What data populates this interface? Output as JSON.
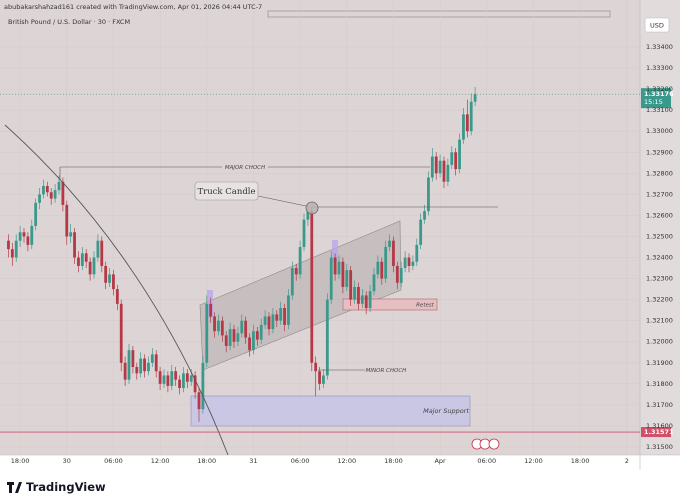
{
  "header": {
    "attribution": "abubakarshahzad161 created with TradingView.com, Apr 01, 2026 04:44 UTC-7",
    "symbol": "British Pound / U.S. Dollar · 30 · FXCM",
    "currency": "USD"
  },
  "chart_data": {
    "type": "candlestick",
    "ohlc": [
      [
        1.3248,
        1.3251,
        1.324,
        1.3244
      ],
      [
        1.3244,
        1.3247,
        1.3236,
        1.324
      ],
      [
        1.324,
        1.3251,
        1.3238,
        1.3248
      ],
      [
        1.3248,
        1.3255,
        1.3245,
        1.3252
      ],
      [
        1.3252,
        1.3254,
        1.3247,
        1.325
      ],
      [
        1.325,
        1.3252,
        1.3243,
        1.3246
      ],
      [
        1.3246,
        1.3258,
        1.3244,
        1.3255
      ],
      [
        1.3255,
        1.3268,
        1.3253,
        1.3266
      ],
      [
        1.3266,
        1.3273,
        1.3263,
        1.327
      ],
      [
        1.327,
        1.3277,
        1.3268,
        1.3274
      ],
      [
        1.3274,
        1.3276,
        1.3269,
        1.3271
      ],
      [
        1.3271,
        1.3273,
        1.3265,
        1.3268
      ],
      [
        1.3268,
        1.3275,
        1.3266,
        1.3272
      ],
      [
        1.3272,
        1.3279,
        1.327,
        1.3276
      ],
      [
        1.3276,
        1.3278,
        1.3262,
        1.3265
      ],
      [
        1.3265,
        1.3267,
        1.3246,
        1.325
      ],
      [
        1.325,
        1.3256,
        1.3247,
        1.3252
      ],
      [
        1.3252,
        1.3254,
        1.3237,
        1.324
      ],
      [
        1.324,
        1.3243,
        1.3233,
        1.3236
      ],
      [
        1.3236,
        1.3245,
        1.3234,
        1.3242
      ],
      [
        1.3242,
        1.3244,
        1.3235,
        1.3238
      ],
      [
        1.3238,
        1.324,
        1.3229,
        1.3232
      ],
      [
        1.3232,
        1.3243,
        1.323,
        1.324
      ],
      [
        1.324,
        1.3251,
        1.3238,
        1.3248
      ],
      [
        1.3248,
        1.325,
        1.3233,
        1.3236
      ],
      [
        1.3236,
        1.3238,
        1.3225,
        1.3228
      ],
      [
        1.3228,
        1.3235,
        1.3226,
        1.3232
      ],
      [
        1.3232,
        1.3234,
        1.3222,
        1.3225
      ],
      [
        1.3225,
        1.3227,
        1.3215,
        1.3218
      ],
      [
        1.3218,
        1.322,
        1.3186,
        1.319
      ],
      [
        1.319,
        1.3193,
        1.3179,
        1.3182
      ],
      [
        1.3182,
        1.3199,
        1.318,
        1.3196
      ],
      [
        1.3196,
        1.3198,
        1.3185,
        1.3188
      ],
      [
        1.3188,
        1.319,
        1.3182,
        1.3185
      ],
      [
        1.3185,
        1.3195,
        1.3183,
        1.3192
      ],
      [
        1.3192,
        1.3194,
        1.3183,
        1.3186
      ],
      [
        1.3186,
        1.3193,
        1.3184,
        1.319
      ],
      [
        1.319,
        1.3197,
        1.3188,
        1.3194
      ],
      [
        1.3194,
        1.3196,
        1.3183,
        1.3186
      ],
      [
        1.3186,
        1.3188,
        1.3177,
        1.318
      ],
      [
        1.318,
        1.3187,
        1.3178,
        1.3184
      ],
      [
        1.3184,
        1.3186,
        1.3176,
        1.3179
      ],
      [
        1.3179,
        1.3189,
        1.3177,
        1.3186
      ],
      [
        1.3186,
        1.3188,
        1.3179,
        1.3182
      ],
      [
        1.3182,
        1.3184,
        1.3175,
        1.3178
      ],
      [
        1.3178,
        1.3188,
        1.3176,
        1.3185
      ],
      [
        1.3185,
        1.3187,
        1.3178,
        1.3181
      ],
      [
        1.3181,
        1.3187,
        1.3179,
        1.3184
      ],
      [
        1.3184,
        1.3186,
        1.3173,
        1.3176
      ],
      [
        1.3176,
        1.3178,
        1.3162,
        1.3168
      ],
      [
        1.3168,
        1.3193,
        1.3166,
        1.319
      ],
      [
        1.319,
        1.3222,
        1.3188,
        1.3218
      ],
      [
        1.3218,
        1.3221,
        1.3209,
        1.3212
      ],
      [
        1.3212,
        1.3214,
        1.3202,
        1.3205
      ],
      [
        1.3205,
        1.3213,
        1.3203,
        1.321
      ],
      [
        1.321,
        1.3212,
        1.32,
        1.3203
      ],
      [
        1.3203,
        1.3205,
        1.3195,
        1.3198
      ],
      [
        1.3198,
        1.3209,
        1.3196,
        1.3206
      ],
      [
        1.3206,
        1.3208,
        1.3197,
        1.32
      ],
      [
        1.32,
        1.3207,
        1.3198,
        1.3204
      ],
      [
        1.3204,
        1.3213,
        1.3202,
        1.321
      ],
      [
        1.321,
        1.3212,
        1.3199,
        1.3202
      ],
      [
        1.3202,
        1.3204,
        1.3193,
        1.3196
      ],
      [
        1.3196,
        1.3208,
        1.3194,
        1.3205
      ],
      [
        1.3205,
        1.3207,
        1.3198,
        1.3201
      ],
      [
        1.3201,
        1.3211,
        1.3199,
        1.3208
      ],
      [
        1.3208,
        1.3215,
        1.3206,
        1.3212
      ],
      [
        1.3212,
        1.3214,
        1.3203,
        1.3206
      ],
      [
        1.3206,
        1.3216,
        1.3204,
        1.3213
      ],
      [
        1.3213,
        1.3215,
        1.3207,
        1.321
      ],
      [
        1.321,
        1.3219,
        1.3208,
        1.3216
      ],
      [
        1.3216,
        1.3218,
        1.3205,
        1.3208
      ],
      [
        1.3208,
        1.3225,
        1.3206,
        1.3222
      ],
      [
        1.3222,
        1.3238,
        1.322,
        1.3235
      ],
      [
        1.3235,
        1.3237,
        1.3229,
        1.3232
      ],
      [
        1.3232,
        1.3248,
        1.323,
        1.3245
      ],
      [
        1.3245,
        1.3261,
        1.3243,
        1.3258
      ],
      [
        1.3258,
        1.3265,
        1.3255,
        1.3262
      ],
      [
        1.3262,
        1.3264,
        1.3186,
        1.319
      ],
      [
        1.319,
        1.3193,
        1.3174,
        1.3186
      ],
      [
        1.3186,
        1.3188,
        1.3177,
        1.318
      ],
      [
        1.318,
        1.3187,
        1.3178,
        1.3184
      ],
      [
        1.3184,
        1.3223,
        1.3182,
        1.322
      ],
      [
        1.322,
        1.3243,
        1.3218,
        1.324
      ],
      [
        1.324,
        1.3242,
        1.3229,
        1.3232
      ],
      [
        1.3232,
        1.3241,
        1.323,
        1.3238
      ],
      [
        1.3238,
        1.324,
        1.3223,
        1.3226
      ],
      [
        1.3226,
        1.3237,
        1.3224,
        1.3234
      ],
      [
        1.3234,
        1.3236,
        1.3217,
        1.322
      ],
      [
        1.322,
        1.3229,
        1.3218,
        1.3226
      ],
      [
        1.3226,
        1.3228,
        1.3215,
        1.3218
      ],
      [
        1.3218,
        1.3225,
        1.3216,
        1.3222
      ],
      [
        1.3222,
        1.3224,
        1.3213,
        1.3216
      ],
      [
        1.3216,
        1.3227,
        1.3214,
        1.3224
      ],
      [
        1.3224,
        1.3235,
        1.3222,
        1.3232
      ],
      [
        1.3232,
        1.3241,
        1.323,
        1.3238
      ],
      [
        1.3238,
        1.324,
        1.3227,
        1.323
      ],
      [
        1.323,
        1.3248,
        1.3228,
        1.3245
      ],
      [
        1.3245,
        1.3251,
        1.3243,
        1.3248
      ],
      [
        1.3248,
        1.325,
        1.3233,
        1.3236
      ],
      [
        1.3236,
        1.3238,
        1.3225,
        1.3228
      ],
      [
        1.3228,
        1.3238,
        1.3226,
        1.3235
      ],
      [
        1.3235,
        1.3243,
        1.3233,
        1.324
      ],
      [
        1.324,
        1.3242,
        1.3233,
        1.3236
      ],
      [
        1.3236,
        1.3241,
        1.3234,
        1.3238
      ],
      [
        1.3238,
        1.3249,
        1.3236,
        1.3246
      ],
      [
        1.3246,
        1.3261,
        1.3244,
        1.3258
      ],
      [
        1.3258,
        1.3265,
        1.3256,
        1.3262
      ],
      [
        1.3262,
        1.3281,
        1.326,
        1.3278
      ],
      [
        1.3278,
        1.3292,
        1.3276,
        1.3288
      ],
      [
        1.3288,
        1.329,
        1.3277,
        1.328
      ],
      [
        1.328,
        1.3289,
        1.3278,
        1.3286
      ],
      [
        1.3286,
        1.3288,
        1.3273,
        1.3276
      ],
      [
        1.3276,
        1.3287,
        1.3274,
        1.3284
      ],
      [
        1.3284,
        1.3293,
        1.3282,
        1.329
      ],
      [
        1.329,
        1.3292,
        1.3279,
        1.3282
      ],
      [
        1.3282,
        1.3299,
        1.328,
        1.3296
      ],
      [
        1.3296,
        1.3311,
        1.3294,
        1.3308
      ],
      [
        1.3308,
        1.3315,
        1.3297,
        1.33
      ],
      [
        1.33,
        1.3318,
        1.3298,
        1.3314
      ],
      [
        1.3314,
        1.3321,
        1.3312,
        1.33176
      ]
    ],
    "up_color": "#3a998b",
    "down_color": "#b43846",
    "xlim": [
      -1.4,
      162.4
    ],
    "xticks": [
      {
        "value": 3,
        "label": "18:00"
      },
      {
        "value": 15,
        "label": "30"
      },
      {
        "value": 27,
        "label": "06:00"
      },
      {
        "value": 39,
        "label": "12:00"
      },
      {
        "value": 51,
        "label": "18:00"
      },
      {
        "value": 63,
        "label": "31"
      },
      {
        "value": 75,
        "label": "06:00"
      },
      {
        "value": 87,
        "label": "12:00"
      },
      {
        "value": 99,
        "label": "18:00"
      },
      {
        "value": 111,
        "label": "Apr"
      },
      {
        "value": 123,
        "label": "06:00"
      },
      {
        "value": 135,
        "label": "12:00"
      },
      {
        "value": 147,
        "label": "18:00"
      },
      {
        "value": 159,
        "label": "2"
      }
    ],
    "ylim": [
      1.31462,
      1.33552
    ],
    "yticks": [
      {
        "value": 1.315,
        "label": "1.31500"
      },
      {
        "value": 1.316,
        "label": "1.31600"
      },
      {
        "value": 1.317,
        "label": "1.31700"
      },
      {
        "value": 1.318,
        "label": "1.31800"
      },
      {
        "value": 1.319,
        "label": "1.31900"
      },
      {
        "value": 1.32,
        "label": "1.32000"
      },
      {
        "value": 1.321,
        "label": "1.32100"
      },
      {
        "value": 1.322,
        "label": "1.32200"
      },
      {
        "value": 1.323,
        "label": "1.32300"
      },
      {
        "value": 1.324,
        "label": "1.32400"
      },
      {
        "value": 1.325,
        "label": "1.32500"
      },
      {
        "value": 1.326,
        "label": "1.32600"
      },
      {
        "value": 1.327,
        "label": "1.32700"
      },
      {
        "value": 1.328,
        "label": "1.32800"
      },
      {
        "value": 1.329,
        "label": "1.32900"
      },
      {
        "value": 1.33,
        "label": "1.33000"
      },
      {
        "value": 1.331,
        "label": "1.33100"
      },
      {
        "value": 1.332,
        "label": "1.33200"
      },
      {
        "value": 1.333,
        "label": "1.33300"
      },
      {
        "value": 1.334,
        "label": "1.33400"
      }
    ],
    "last_price": 1.33176,
    "countdown": "15:15",
    "support_price": 1.31571,
    "annotations": [
      "MAJOR CHOCH",
      "Truck Candle",
      "Retest",
      "MINOR CHOCH",
      "Major Support"
    ]
  },
  "footer": {
    "brand": "TradingView"
  }
}
